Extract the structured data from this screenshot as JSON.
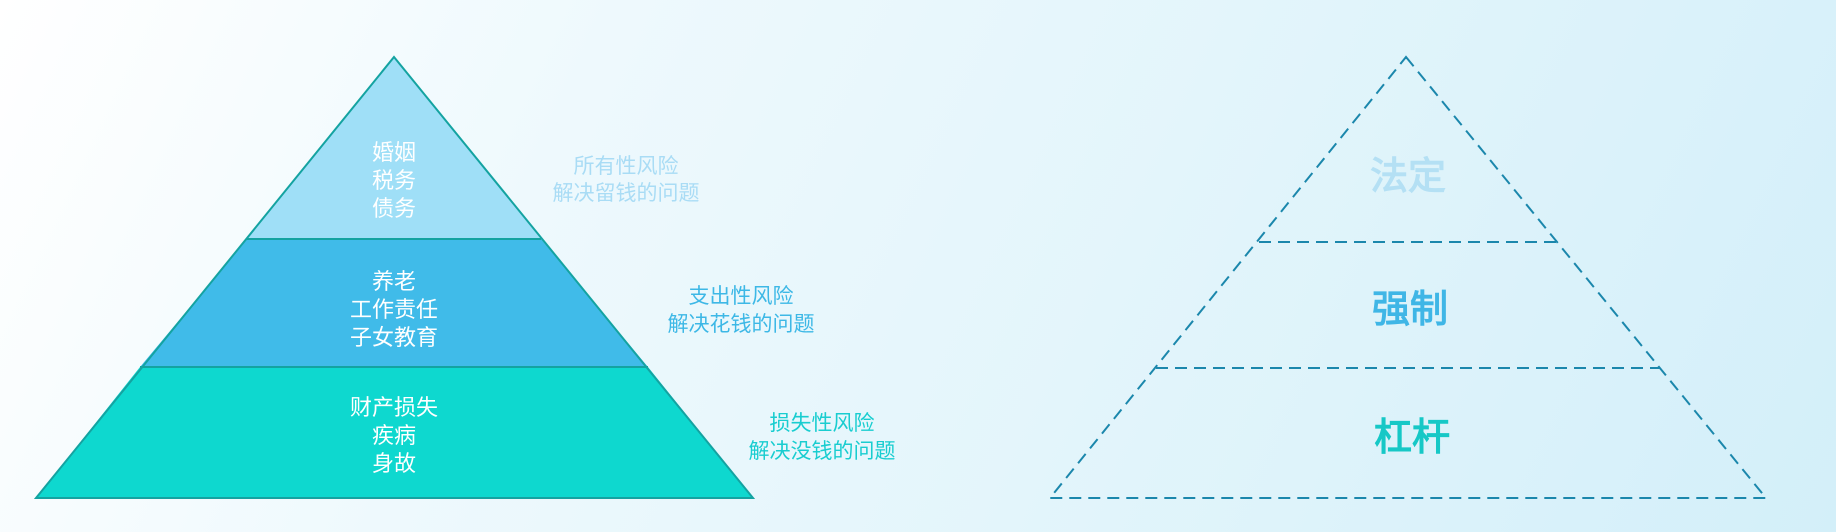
{
  "left_pyramid": {
    "colors": {
      "top": "#9fdff7",
      "middle": "#40bbe9",
      "bottom": "#0ed8cf",
      "outline": "#14a3a1",
      "inner_text": "#ffffff"
    },
    "tiers": [
      {
        "lines": [
          "婚姻",
          "税务",
          "债务"
        ],
        "note": [
          "所有性风险",
          "解决留钱的问题"
        ],
        "note_color": "#a9dcf5"
      },
      {
        "lines": [
          "养老",
          "工作责任",
          "子女教育"
        ],
        "note": [
          "支出性风险",
          "解决花钱的问题"
        ],
        "note_color": "#3db8e6"
      },
      {
        "lines": [
          "财产损失",
          "疾病",
          "身故"
        ],
        "note": [
          "损失性风险",
          "解决没钱的问题"
        ],
        "note_color": "#19cdd0"
      }
    ]
  },
  "right_pyramid": {
    "dash_color": "#1b87ac",
    "tiers": [
      {
        "label": "法定",
        "color": "#b4e0f4"
      },
      {
        "label": "强制",
        "color": "#3fb6e6"
      },
      {
        "label": "杠杆",
        "color": "#16c8c6"
      }
    ]
  }
}
